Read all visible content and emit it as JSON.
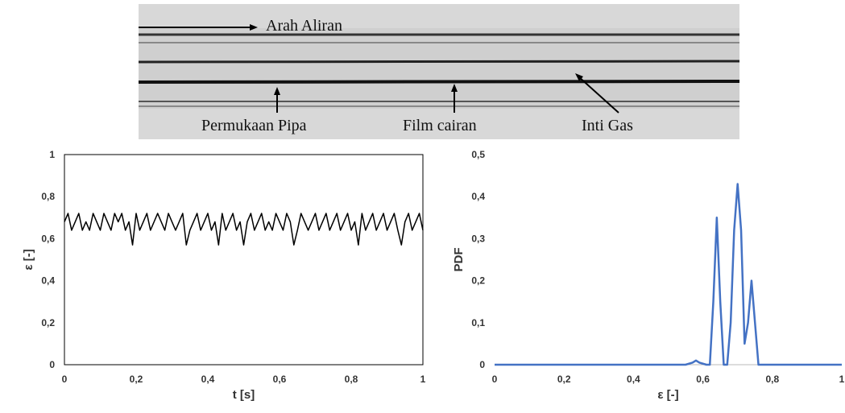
{
  "figure": {
    "labels": [
      "Arah Aliran",
      "Permukaan Pipa",
      "Film cairan",
      "Inti Gas"
    ]
  },
  "chart_data": [
    {
      "type": "line",
      "xlabel": "t [s]",
      "ylabel": "ε [-]",
      "color": "#000000",
      "xlim": [
        0,
        1
      ],
      "ylim": [
        0,
        1
      ],
      "xticks": [
        0,
        {
          "value": 0.2,
          "label": "0,2"
        },
        {
          "value": 0.4,
          "label": "0,4"
        },
        {
          "value": 0.6,
          "label": "0,6"
        },
        {
          "value": 0.8,
          "label": "0,8"
        },
        1
      ],
      "yticks": [
        0,
        {
          "value": 0.2,
          "label": "0,2"
        },
        {
          "value": 0.4,
          "label": "0,4"
        },
        {
          "value": 0.6,
          "label": "0,6"
        },
        {
          "value": 0.8,
          "label": "0,8"
        },
        1
      ],
      "x": [
        0,
        0.01,
        0.02,
        0.03,
        0.04,
        0.05,
        0.06,
        0.07,
        0.08,
        0.09,
        0.1,
        0.11,
        0.12,
        0.13,
        0.14,
        0.15,
        0.16,
        0.17,
        0.18,
        0.19,
        0.2,
        0.21,
        0.22,
        0.23,
        0.24,
        0.25,
        0.26,
        0.27,
        0.28,
        0.29,
        0.3,
        0.31,
        0.32,
        0.33,
        0.34,
        0.35,
        0.36,
        0.37,
        0.38,
        0.39,
        0.4,
        0.41,
        0.42,
        0.43,
        0.44,
        0.45,
        0.46,
        0.47,
        0.48,
        0.49,
        0.5,
        0.51,
        0.52,
        0.53,
        0.54,
        0.55,
        0.56,
        0.57,
        0.58,
        0.59,
        0.6,
        0.61,
        0.62,
        0.63,
        0.64,
        0.65,
        0.66,
        0.67,
        0.68,
        0.69,
        0.7,
        0.71,
        0.72,
        0.73,
        0.74,
        0.75,
        0.76,
        0.77,
        0.78,
        0.79,
        0.8,
        0.81,
        0.82,
        0.83,
        0.84,
        0.85,
        0.86,
        0.87,
        0.88,
        0.89,
        0.9,
        0.91,
        0.92,
        0.93,
        0.94,
        0.95,
        0.96,
        0.97,
        0.98,
        0.99,
        1
      ],
      "values": [
        0.68,
        0.72,
        0.64,
        0.68,
        0.72,
        0.64,
        0.68,
        0.64,
        0.72,
        0.68,
        0.64,
        0.72,
        0.68,
        0.64,
        0.72,
        0.68,
        0.72,
        0.64,
        0.68,
        0.57,
        0.72,
        0.64,
        0.68,
        0.72,
        0.64,
        0.68,
        0.72,
        0.68,
        0.64,
        0.72,
        0.68,
        0.64,
        0.68,
        0.72,
        0.57,
        0.64,
        0.68,
        0.72,
        0.64,
        0.68,
        0.72,
        0.64,
        0.68,
        0.57,
        0.72,
        0.64,
        0.68,
        0.72,
        0.64,
        0.68,
        0.57,
        0.68,
        0.72,
        0.64,
        0.68,
        0.72,
        0.64,
        0.68,
        0.64,
        0.72,
        0.68,
        0.64,
        0.72,
        0.68,
        0.57,
        0.64,
        0.72,
        0.68,
        0.64,
        0.68,
        0.72,
        0.64,
        0.68,
        0.72,
        0.64,
        0.68,
        0.72,
        0.64,
        0.68,
        0.72,
        0.64,
        0.68,
        0.57,
        0.72,
        0.64,
        0.68,
        0.72,
        0.64,
        0.68,
        0.72,
        0.64,
        0.68,
        0.72,
        0.64,
        0.57,
        0.68,
        0.72,
        0.64,
        0.68,
        0.72,
        0.64
      ]
    },
    {
      "type": "line",
      "xlabel": "ε [-]",
      "ylabel": "PDF",
      "color": "#4472c4",
      "xlim": [
        0,
        1
      ],
      "ylim": [
        0,
        0.5
      ],
      "xticks": [
        0,
        {
          "value": 0.2,
          "label": "0,2"
        },
        {
          "value": 0.4,
          "label": "0,4"
        },
        {
          "value": 0.6,
          "label": "0,6"
        },
        {
          "value": 0.8,
          "label": "0,8"
        },
        1
      ],
      "yticks": [
        0,
        {
          "value": 0.1,
          "label": "0,1"
        },
        {
          "value": 0.2,
          "label": "0,2"
        },
        {
          "value": 0.3,
          "label": "0,3"
        },
        {
          "value": 0.4,
          "label": "0,4"
        },
        {
          "value": 0.5,
          "label": "0,5"
        }
      ],
      "x": [
        0,
        0.55,
        0.57,
        0.58,
        0.59,
        0.61,
        0.62,
        0.63,
        0.64,
        0.65,
        0.66,
        0.67,
        0.68,
        0.69,
        0.7,
        0.71,
        0.72,
        0.73,
        0.74,
        0.75,
        0.76,
        1
      ],
      "values": [
        0,
        0,
        0.005,
        0.01,
        0.005,
        0,
        0,
        0.15,
        0.35,
        0.15,
        0,
        0,
        0.1,
        0.32,
        0.43,
        0.32,
        0.05,
        0.1,
        0.2,
        0.1,
        0,
        0
      ]
    }
  ]
}
